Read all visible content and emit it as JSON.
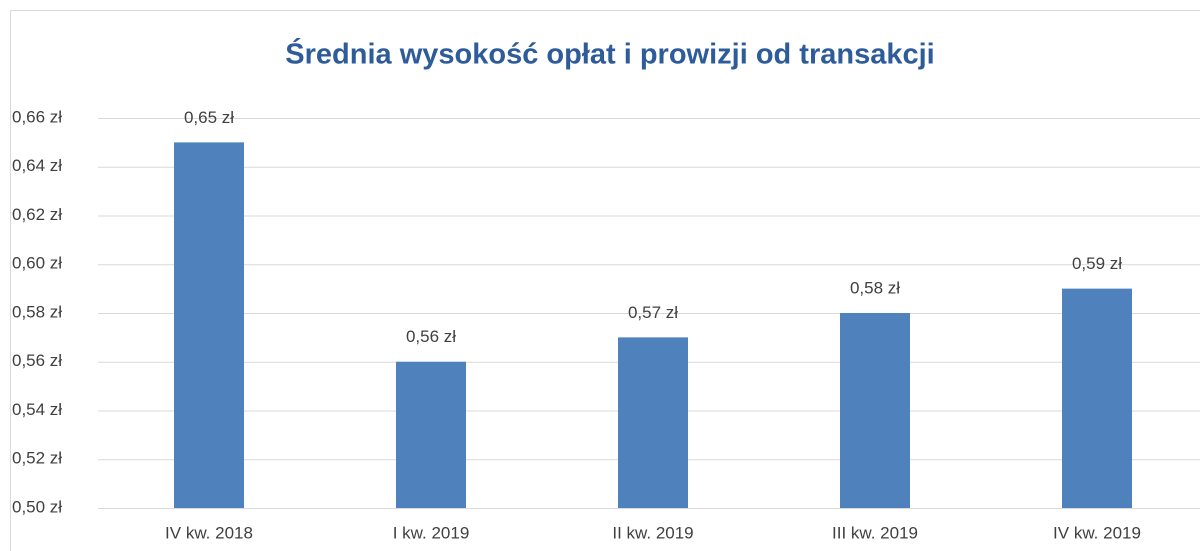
{
  "chart_data": {
    "type": "bar",
    "title": "Średnia wysokość opłat i prowizji od transakcji",
    "categories": [
      "IV kw. 2018",
      "I kw. 2019",
      "II kw. 2019",
      "III kw. 2019",
      "IV kw. 2019"
    ],
    "values": [
      0.65,
      0.56,
      0.57,
      0.58,
      0.59
    ],
    "value_labels": [
      "0,65 zł",
      "0,56 zł",
      "0,57 zł",
      "0,58 zł",
      "0,59 zł"
    ],
    "color": "#4f81bd",
    "ylim": [
      0.5,
      0.66
    ],
    "yticks": [
      {
        "value": 0.5,
        "label": "0,50 zł"
      },
      {
        "value": 0.52,
        "label": "0,52 zł"
      },
      {
        "value": 0.54,
        "label": "0,54 zł"
      },
      {
        "value": 0.56,
        "label": "0,56 zł"
      },
      {
        "value": 0.58,
        "label": "0,58 zł"
      },
      {
        "value": 0.6,
        "label": "0,60 zł"
      },
      {
        "value": 0.62,
        "label": "0,62 zł"
      },
      {
        "value": 0.64,
        "label": "0,64 zł"
      },
      {
        "value": 0.66,
        "label": "0,66 zł"
      }
    ],
    "grid": true
  }
}
